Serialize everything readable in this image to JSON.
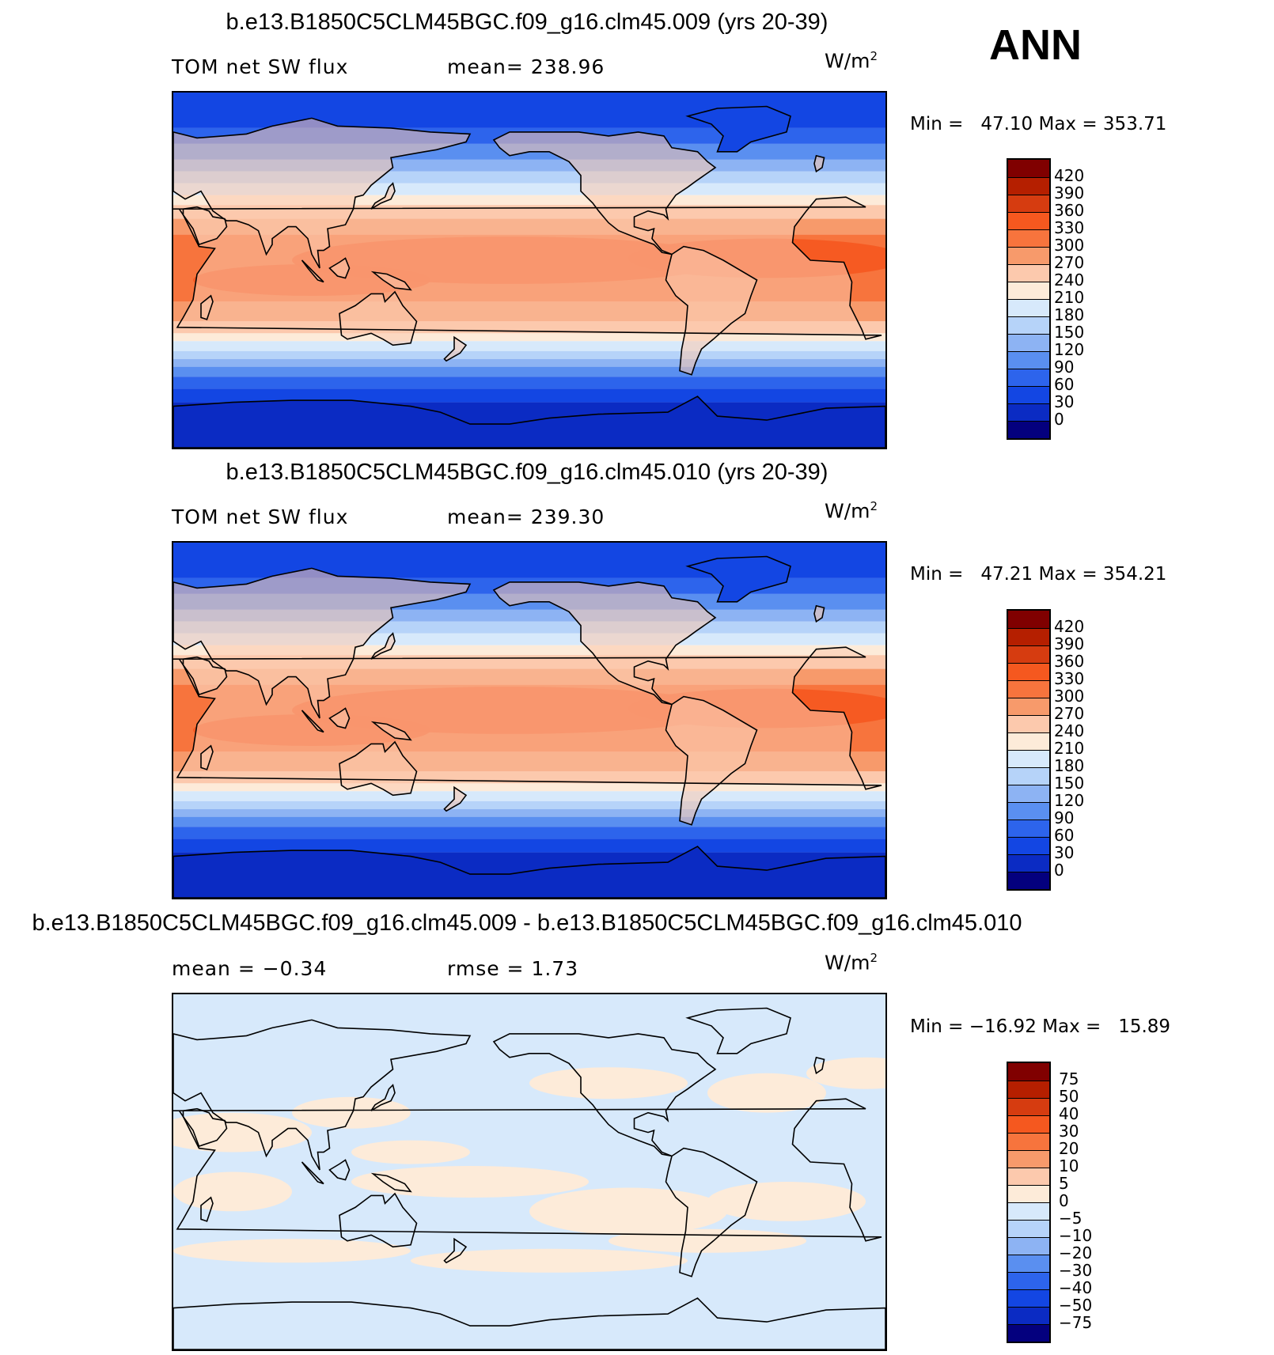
{
  "season": "ANN",
  "panels": [
    {
      "title": "b.e13.B1850C5CLM45BGC.f09_g16.clm45.009 (yrs 20-39)",
      "variable": "TOM net SW flux",
      "stat_left": "mean= 238.96",
      "stat_right": "",
      "unit": "W/m",
      "unit_sup": "2",
      "min_max": "Min =   47.10 Max = 353.71",
      "kind": "abs"
    },
    {
      "title": "b.e13.B1850C5CLM45BGC.f09_g16.clm45.010 (yrs 20-39)",
      "variable": "TOM net SW flux",
      "stat_left": "mean= 239.30",
      "stat_right": "",
      "unit": "W/m",
      "unit_sup": "2",
      "min_max": "Min =   47.21 Max = 354.21",
      "kind": "abs"
    },
    {
      "title": "b.e13.B1850C5CLM45BGC.f09_g16.clm45.009 - b.e13.B1850C5CLM45BGC.f09_g16.clm45.010",
      "variable": "mean =   −0.34",
      "stat_left": "rmse =    1.73",
      "stat_right": "",
      "unit": "W/m",
      "unit_sup": "2",
      "min_max": "Min = −16.92 Max =   15.89",
      "kind": "diff"
    }
  ],
  "colorbars": {
    "abs": {
      "levels": [
        "420",
        "390",
        "360",
        "330",
        "300",
        "270",
        "240",
        "210",
        "180",
        "150",
        "120",
        "90",
        "60",
        "30",
        "0"
      ],
      "colors": [
        "#800000",
        "#b51f00",
        "#d63c10",
        "#f5581f",
        "#f7743d",
        "#f79a6b",
        "#fcc9ad",
        "#fdebd9",
        "#d7e9fb",
        "#b6d3f9",
        "#8db3f3",
        "#5a8ff0",
        "#2d64ec",
        "#1346e3",
        "#0b2bc3",
        "#04007e"
      ]
    },
    "diff": {
      "levels": [
        "75",
        "50",
        "40",
        "30",
        "20",
        "10",
        "5",
        "0",
        "−5",
        "−10",
        "−20",
        "−30",
        "−40",
        "−50",
        "−75"
      ],
      "colors": [
        "#800000",
        "#b51f00",
        "#d63c10",
        "#f5581f",
        "#f7743d",
        "#f79a6b",
        "#fcc9ad",
        "#fdebd9",
        "#d7e9fb",
        "#b6d3f9",
        "#8db3f3",
        "#5a8ff0",
        "#2d64ec",
        "#1346e3",
        "#0b2bc3",
        "#04007e"
      ]
    }
  }
}
